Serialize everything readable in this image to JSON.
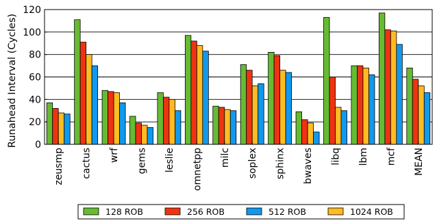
{
  "chart_data": {
    "type": "bar",
    "ylabel": "Runahead Interval (Cycles)",
    "ylim": [
      0,
      120
    ],
    "yticks": [
      0,
      20,
      40,
      60,
      80,
      100,
      120
    ],
    "grid": "horizontal",
    "legend_position": "bottom",
    "categories": [
      "zeusmp",
      "cactus",
      "wrf",
      "gems",
      "leslie",
      "omnetpp",
      "milc",
      "soplex",
      "sphinx",
      "bwaves",
      "libq",
      "lbm",
      "mcf",
      "MEAN"
    ],
    "series": [
      {
        "name": "128 ROB",
        "color": "#66bb33",
        "values": [
          37,
          111,
          48,
          25,
          46,
          97,
          34,
          71,
          82,
          29,
          113,
          70,
          117,
          68
        ]
      },
      {
        "name": "256 ROB",
        "color": "#ee3311",
        "values": [
          32,
          91,
          47,
          19,
          42,
          92,
          33,
          66,
          79,
          22,
          60,
          70,
          102,
          58
        ]
      },
      {
        "name": "1024 ROB",
        "color": "#ffbb22",
        "values": [
          28,
          80,
          46,
          17,
          40,
          88,
          31,
          52,
          66,
          19,
          33,
          68,
          101,
          52
        ]
      },
      {
        "name": "512 ROB",
        "color": "#1199ee",
        "values": [
          27,
          70,
          37,
          15,
          30,
          83,
          30,
          54,
          64,
          11,
          30,
          62,
          89,
          46
        ]
      }
    ],
    "legend_order": [
      "128 ROB",
      "256 ROB",
      "512 ROB",
      "1024 ROB"
    ]
  }
}
